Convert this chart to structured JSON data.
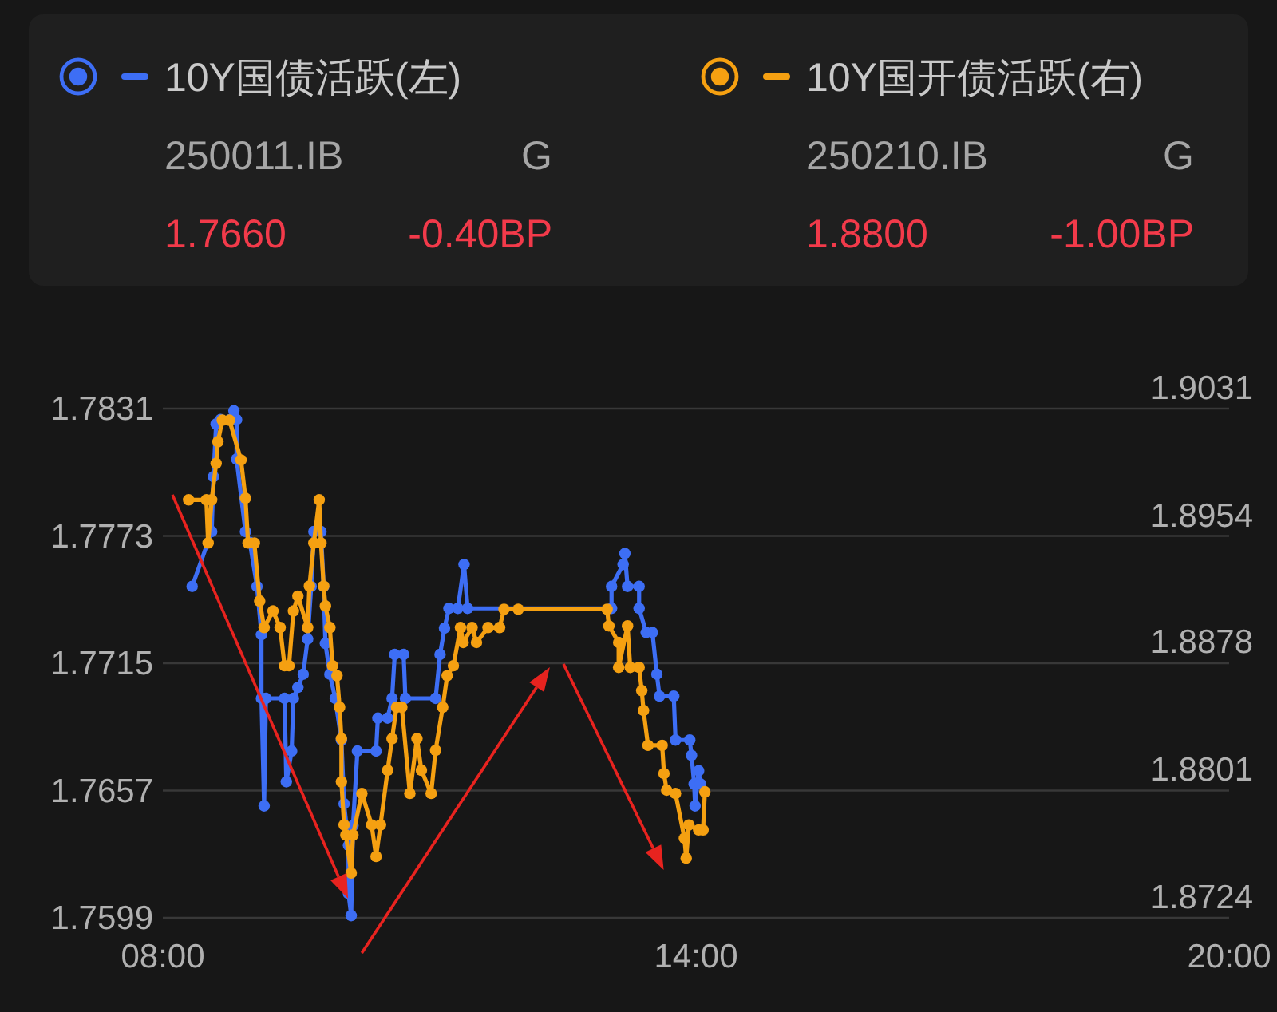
{
  "chart_data": {
    "type": "line",
    "xlim": [
      8,
      20
    ],
    "xticks": [
      {
        "value": 8,
        "label": "08:00"
      },
      {
        "value": 14,
        "label": "14:00"
      },
      {
        "value": 20,
        "label": "20:00"
      }
    ],
    "ylim": [
      1.7599,
      1.7831
    ],
    "yticks": [
      1.7599,
      1.7657,
      1.7715,
      1.7773,
      1.7831
    ],
    "y2lim": [
      1.8724,
      1.9031
    ],
    "y2ticks": [
      1.8724,
      1.8801,
      1.8878,
      1.8954,
      1.9031
    ],
    "grid": "y",
    "legend": "top",
    "marker": "circle",
    "annotations": [
      "250011.IB",
      "G",
      "1.7660",
      "-0.40BP",
      "250210.IB",
      "G",
      "1.8800",
      "-1.00BP"
    ],
    "series": [
      {
        "name": "10Y国债活跃(左)",
        "color": "#3d6ef5",
        "x": [
          8.33,
          8.55,
          8.57,
          8.6,
          8.65,
          8.76,
          8.8,
          8.83,
          8.83,
          8.93,
          8.98,
          9.06,
          9.11,
          9.11,
          9.14,
          9.16,
          9.37,
          9.39,
          9.45,
          9.47,
          9.52,
          9.58,
          9.63,
          9.67,
          9.7,
          9.78,
          9.81,
          9.83,
          9.88,
          9.94,
          10.01,
          10.04,
          10.09,
          10.09,
          10.12,
          10.14,
          10.19,
          10.4,
          10.42,
          10.53,
          10.58,
          10.61,
          10.71,
          10.73,
          11.07,
          11.12,
          11.17,
          11.22,
          11.32,
          11.39,
          11.43,
          13.05,
          13.05,
          13.18,
          13.2,
          13.23,
          13.36,
          13.36,
          13.44,
          13.51,
          13.56,
          13.59,
          13.75,
          13.77,
          13.93,
          13.95,
          13.98,
          13.99,
          14.03,
          14.05
        ],
        "values": [
          1.775,
          1.7775,
          1.78,
          1.7824,
          1.7826,
          1.7826,
          1.783,
          1.7826,
          1.7808,
          1.7775,
          1.777,
          1.775,
          1.7728,
          1.7699,
          1.765,
          1.7699,
          1.7699,
          1.7661,
          1.7675,
          1.7699,
          1.7704,
          1.771,
          1.7726,
          1.775,
          1.7775,
          1.7775,
          1.775,
          1.7724,
          1.771,
          1.7699,
          1.768,
          1.7651,
          1.7632,
          1.761,
          1.76,
          1.7641,
          1.7675,
          1.7675,
          1.769,
          1.769,
          1.7699,
          1.7719,
          1.7719,
          1.7699,
          1.7699,
          1.7719,
          1.7731,
          1.774,
          1.774,
          1.776,
          1.774,
          1.774,
          1.775,
          1.776,
          1.7765,
          1.775,
          1.775,
          1.774,
          1.7729,
          1.7729,
          1.771,
          1.77,
          1.77,
          1.768,
          1.768,
          1.7673,
          1.766,
          1.765,
          1.7666,
          1.766
        ]
      },
      {
        "name": "10Y国开债活跃(右)",
        "color": "#f5a011",
        "axis": "y2",
        "x": [
          8.29,
          8.49,
          8.51,
          8.55,
          8.6,
          8.62,
          8.67,
          8.75,
          8.88,
          8.93,
          8.96,
          9.03,
          9.09,
          9.14,
          9.24,
          9.32,
          9.37,
          9.42,
          9.47,
          9.52,
          9.63,
          9.65,
          9.7,
          9.76,
          9.78,
          9.81,
          9.83,
          9.88,
          9.91,
          9.96,
          9.99,
          10.01,
          10.01,
          10.04,
          10.06,
          10.12,
          10.14,
          10.24,
          10.35,
          10.4,
          10.45,
          10.53,
          10.58,
          10.63,
          10.69,
          10.78,
          10.86,
          10.91,
          11.02,
          11.07,
          11.15,
          11.2,
          11.27,
          11.35,
          11.38,
          11.48,
          11.53,
          11.66,
          11.79,
          11.84,
          12.0,
          13.0,
          13.02,
          13.13,
          13.13,
          13.23,
          13.26,
          13.36,
          13.39,
          13.41,
          13.46,
          13.62,
          13.64,
          13.67,
          13.77,
          13.87,
          13.89,
          13.92,
          14.03,
          14.08,
          14.1
        ],
        "values": [
          1.8976,
          1.8976,
          1.895,
          1.8976,
          1.8998,
          1.9011,
          1.9024,
          1.9024,
          1.9,
          1.8977,
          1.895,
          1.895,
          1.8915,
          1.8899,
          1.8909,
          1.8899,
          1.8876,
          1.8876,
          1.8909,
          1.8918,
          1.8899,
          1.8924,
          1.895,
          1.8976,
          1.895,
          1.8924,
          1.8912,
          1.8899,
          1.8876,
          1.887,
          1.8851,
          1.8832,
          1.8806,
          1.878,
          1.8774,
          1.8751,
          1.8774,
          1.8799,
          1.878,
          1.8761,
          1.878,
          1.8813,
          1.8832,
          1.8851,
          1.8851,
          1.8799,
          1.8832,
          1.8813,
          1.8799,
          1.8825,
          1.8851,
          1.887,
          1.8876,
          1.8899,
          1.889,
          1.8899,
          1.889,
          1.8899,
          1.8899,
          1.891,
          1.891,
          1.891,
          1.89,
          1.889,
          1.8875,
          1.89,
          1.8875,
          1.8875,
          1.8861,
          1.8849,
          1.8828,
          1.8828,
          1.8811,
          1.8801,
          1.8799,
          1.8772,
          1.876,
          1.878,
          1.8777,
          1.8777,
          1.88
        ]
      }
    ]
  }
}
